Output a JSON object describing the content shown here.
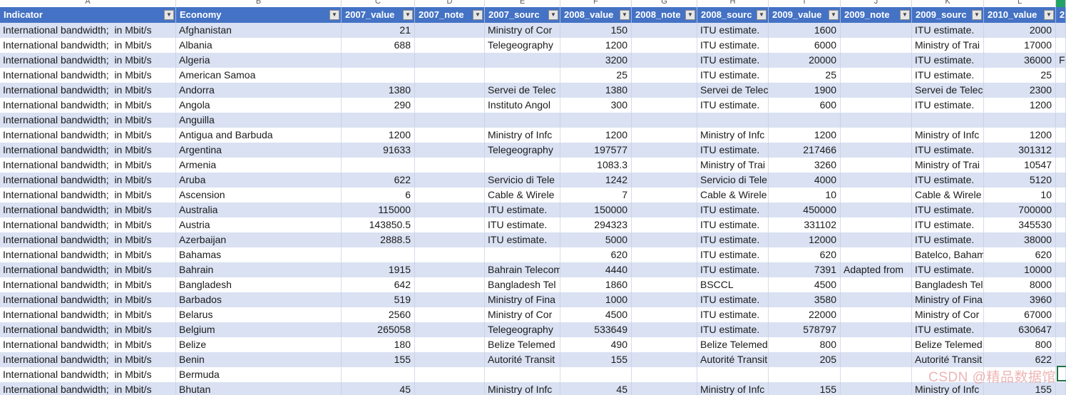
{
  "app": {
    "type": "spreadsheet-with-filtered-table"
  },
  "watermark": {
    "text": "CSDN @精品数据馆"
  },
  "colors": {
    "header_bg": "#4472C4",
    "header_text": "#FFFFFF",
    "band_row": "#D9E1F2",
    "white_row": "#FFFFFF",
    "gridline": "#D5DDEA",
    "band_gridline": "#C9D3E9",
    "cell_text": "#1B1B1B",
    "letter_text": "#595959",
    "filter_btn_bg": "#E6E6E6",
    "filter_btn_border": "#8F8F8F",
    "selection_green": "#217346",
    "selected_column_green": "#21A366"
  },
  "table": {
    "column_letters": [
      "A",
      "B",
      "C",
      "D",
      "E",
      "F",
      "G",
      "H",
      "I",
      "J",
      "K",
      "L",
      "M"
    ],
    "selection": {
      "column": "M",
      "row_economy": "Bermuda"
    },
    "filter_icon": "▼",
    "headers": [
      {
        "label": "Indicator",
        "filter": true
      },
      {
        "label": "Economy",
        "filter": true
      },
      {
        "label": "2007_value",
        "filter": true
      },
      {
        "label": "2007_note",
        "filter": true
      },
      {
        "label": "2007_sourc",
        "filter": true
      },
      {
        "label": "2008_value",
        "filter": true
      },
      {
        "label": "2008_note",
        "filter": true
      },
      {
        "label": "2008_sourc",
        "filter": true
      },
      {
        "label": "2009_value",
        "filter": true
      },
      {
        "label": "2009_note",
        "filter": true
      },
      {
        "label": "2009_sourc",
        "filter": true
      },
      {
        "label": "2010_value",
        "filter": true
      },
      {
        "label": "2",
        "filter": false
      }
    ],
    "indicator_label": "International bandwidth;  in Mbit/s",
    "rows": [
      [
        "Afghanistan",
        "21",
        "",
        "Ministry of Cor",
        "150",
        "",
        "ITU estimate.",
        "1600",
        "",
        "ITU estimate.",
        "2000",
        ""
      ],
      [
        "Albania",
        "688",
        "",
        "Telegeography",
        "1200",
        "",
        "ITU estimate.",
        "6000",
        "",
        "Ministry of Trai",
        "17000",
        ""
      ],
      [
        "Algeria",
        "",
        "",
        "",
        "3200",
        "",
        "ITU estimate.",
        "20000",
        "",
        "ITU estimate.",
        "36000",
        "F"
      ],
      [
        "American Samoa",
        "",
        "",
        "",
        "25",
        "",
        "ITU estimate.",
        "25",
        "",
        "ITU estimate.",
        "25",
        ""
      ],
      [
        "Andorra",
        "1380",
        "",
        "Servei de Telec",
        "1380",
        "",
        "Servei de Telec",
        "1900",
        "",
        "Servei de Telec",
        "2300",
        ""
      ],
      [
        "Angola",
        "290",
        "",
        "Instituto Angol",
        "300",
        "",
        "ITU estimate.",
        "600",
        "",
        "ITU estimate.",
        "1200",
        ""
      ],
      [
        "Anguilla",
        "",
        "",
        "",
        "",
        "",
        "",
        "",
        "",
        "",
        "",
        ""
      ],
      [
        "Antigua and Barbuda",
        "1200",
        "",
        "Ministry of Infc",
        "1200",
        "",
        "Ministry of Infc",
        "1200",
        "",
        "Ministry of Infc",
        "1200",
        ""
      ],
      [
        "Argentina",
        "91633",
        "",
        "Telegeography",
        "197577",
        "",
        "ITU estimate.",
        "217466",
        "",
        "ITU estimate.",
        "301312",
        ""
      ],
      [
        "Armenia",
        "",
        "",
        "",
        "1083.3",
        "",
        "Ministry of Trai",
        "3260",
        "",
        "Ministry of Trai",
        "10547",
        ""
      ],
      [
        "Aruba",
        "622",
        "",
        "Servicio di Tele",
        "1242",
        "",
        "Servicio di Tele",
        "4000",
        "",
        "ITU estimate.",
        "5120",
        ""
      ],
      [
        "Ascension",
        "6",
        "",
        "Cable & Wirele",
        "7",
        "",
        "Cable & Wirele",
        "10",
        "",
        "Cable & Wirele",
        "10",
        ""
      ],
      [
        "Australia",
        "115000",
        "",
        "ITU estimate.",
        "150000",
        "",
        "ITU estimate.",
        "450000",
        "",
        "ITU estimate.",
        "700000",
        ""
      ],
      [
        "Austria",
        "143850.5",
        "",
        "ITU estimate.",
        "294323",
        "",
        "ITU estimate.",
        "331102",
        "",
        "ITU estimate.",
        "345530",
        ""
      ],
      [
        "Azerbaijan",
        "2888.5",
        "",
        "ITU estimate.",
        "5000",
        "",
        "ITU estimate.",
        "12000",
        "",
        "ITU estimate.",
        "38000",
        ""
      ],
      [
        "Bahamas",
        "",
        "",
        "",
        "620",
        "",
        "ITU estimate.",
        "620",
        "",
        "Batelco, Baham",
        "620",
        ""
      ],
      [
        "Bahrain",
        "1915",
        "",
        "Bahrain Telecom",
        "4440",
        "",
        "ITU estimate.",
        "7391",
        "Adapted from",
        "ITU estimate.",
        "10000",
        ""
      ],
      [
        "Bangladesh",
        "642",
        "",
        "Bangladesh Tel",
        "1860",
        "",
        "BSCCL",
        "4500",
        "",
        "Bangladesh Tel",
        "8000",
        ""
      ],
      [
        "Barbados",
        "519",
        "",
        "Ministry of Fina",
        "1000",
        "",
        "ITU estimate.",
        "3580",
        "",
        "Ministry of Fina",
        "3960",
        ""
      ],
      [
        "Belarus",
        "2560",
        "",
        "Ministry of Cor",
        "4500",
        "",
        "ITU estimate.",
        "22000",
        "",
        "Ministry of Cor",
        "67000",
        ""
      ],
      [
        "Belgium",
        "265058",
        "",
        "Telegeography",
        "533649",
        "",
        "ITU estimate.",
        "578797",
        "",
        "ITU estimate.",
        "630647",
        ""
      ],
      [
        "Belize",
        "180",
        "",
        "Belize Telemed",
        "490",
        "",
        "Belize Telemed",
        "800",
        "",
        "Belize Telemed",
        "800",
        ""
      ],
      [
        "Benin",
        "155",
        "",
        "Autorité Transit",
        "155",
        "",
        "Autorité Transit",
        "205",
        "",
        "Autorité Transit",
        "622",
        ""
      ],
      [
        "Bermuda",
        "",
        "",
        "",
        "",
        "",
        "",
        "",
        "",
        "",
        "",
        ""
      ],
      [
        "Bhutan",
        "45",
        "",
        "Ministry of Infc",
        "45",
        "",
        "Ministry of Infc",
        "155",
        "",
        "Ministry of Infc",
        "155",
        ""
      ]
    ]
  }
}
